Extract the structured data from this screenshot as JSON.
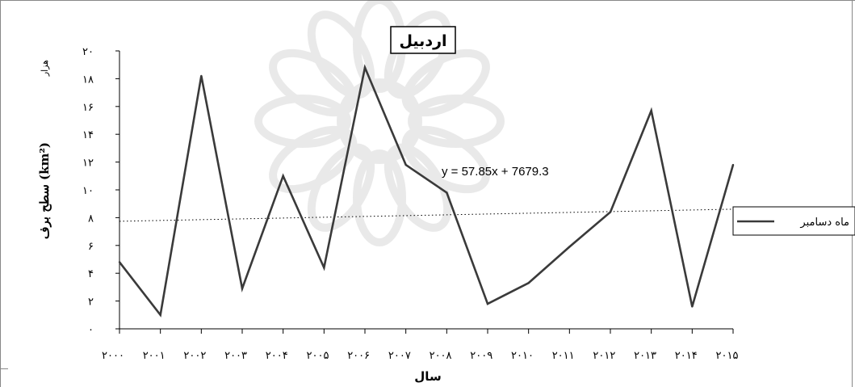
{
  "chart_data": {
    "type": "line",
    "title": "اردبیل",
    "ylabel": "سطح برف (km²)",
    "y_unit": "هزار",
    "xlabel": "سال",
    "x": [
      2000,
      2001,
      2002,
      2003,
      2004,
      2005,
      2006,
      2007,
      2008,
      2009,
      2010,
      2011,
      2012,
      2013,
      2014,
      2015
    ],
    "x_tick_labels": [
      "۲۰۰۰",
      "۲۰۰۱",
      "۲۰۰۲",
      "۲۰۰۳",
      "۲۰۰۴",
      "۲۰۰۵",
      "۲۰۰۶",
      "۲۰۰۷",
      "۲۰۰۸",
      "۲۰۰۹",
      "۲۰۱۰",
      "۲۰۱۱",
      "۲۰۱۲",
      "۲۰۱۳",
      "۲۰۱۴",
      "۲۰۱۵"
    ],
    "ylim": [
      0,
      20
    ],
    "y_ticks": [
      0,
      2,
      4,
      6,
      8,
      10,
      12,
      14,
      16,
      18,
      20
    ],
    "y_tick_labels": [
      "۰",
      "۲",
      "۴",
      "۶",
      "۸",
      "۱۰",
      "۱۲",
      "۱۴",
      "۱۶",
      "۱۸",
      "۲۰"
    ],
    "grid": false,
    "legend_position": "right",
    "series": [
      {
        "name": "ماه دسامبر",
        "color": "#3a3a3a",
        "values": [
          4.8,
          1.0,
          18.2,
          2.9,
          11.0,
          4.4,
          18.8,
          11.8,
          9.8,
          1.8,
          3.3,
          5.9,
          8.4,
          15.7,
          1.6,
          11.8
        ]
      }
    ],
    "trendline": {
      "style": "dotted",
      "slope": 57.85,
      "intercept": 7679.3,
      "start_value": 7.74,
      "end_value": 8.61,
      "equation": "y = 57.85x + 7679.3"
    }
  }
}
